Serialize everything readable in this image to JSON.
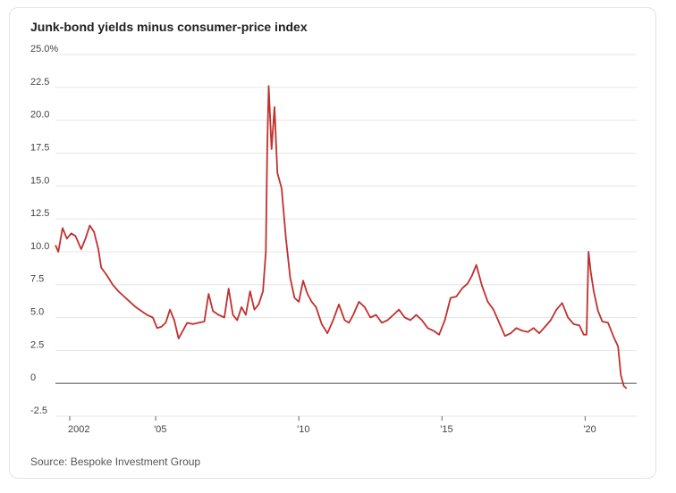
{
  "chart_data": {
    "type": "line",
    "title": "Junk-bond yields minus consumer-price index",
    "source": "Source: Bespoke Investment Group",
    "xlabel": "",
    "ylabel": "",
    "ylim": [
      -2.5,
      25
    ],
    "xlim": [
      2001.5,
      2021.8
    ],
    "grid": true,
    "y_ticks": [
      {
        "value": 25,
        "label": "25.0%"
      },
      {
        "value": 22.5,
        "label": "22.5"
      },
      {
        "value": 20,
        "label": "20.0"
      },
      {
        "value": 17.5,
        "label": "17.5"
      },
      {
        "value": 15,
        "label": "15.0"
      },
      {
        "value": 12.5,
        "label": "12.5"
      },
      {
        "value": 10,
        "label": "10.0"
      },
      {
        "value": 7.5,
        "label": "7.5"
      },
      {
        "value": 5,
        "label": "5.0"
      },
      {
        "value": 2.5,
        "label": "2.5"
      },
      {
        "value": 0,
        "label": "0"
      },
      {
        "value": -2.5,
        "label": "-2.5"
      }
    ],
    "x_ticks": [
      {
        "value": 2002,
        "label": "2002"
      },
      {
        "value": 2005,
        "label": "'05"
      },
      {
        "value": 2010,
        "label": "'10"
      },
      {
        "value": 2015,
        "label": "'15"
      },
      {
        "value": 2020,
        "label": "'20"
      }
    ],
    "series": [
      {
        "color": "#c0302e",
        "x": [
          2001.5,
          2001.6,
          2001.75,
          2001.9,
          2002.05,
          2002.2,
          2002.4,
          2002.55,
          2002.7,
          2002.85,
          2003.0,
          2003.1,
          2003.3,
          2003.5,
          2003.7,
          2003.9,
          2004.1,
          2004.3,
          2004.5,
          2004.7,
          2004.9,
          2005.05,
          2005.2,
          2005.35,
          2005.5,
          2005.65,
          2005.8,
          2005.95,
          2006.1,
          2006.3,
          2006.5,
          2006.7,
          2006.85,
          2007.0,
          2007.2,
          2007.4,
          2007.55,
          2007.7,
          2007.85,
          2008.0,
          2008.15,
          2008.3,
          2008.45,
          2008.6,
          2008.75,
          2008.85,
          2008.9,
          2008.95,
          2009.05,
          2009.15,
          2009.25,
          2009.4,
          2009.55,
          2009.7,
          2009.85,
          2010.0,
          2010.15,
          2010.3,
          2010.45,
          2010.6,
          2010.8,
          2011.0,
          2011.2,
          2011.4,
          2011.6,
          2011.75,
          2011.9,
          2012.1,
          2012.3,
          2012.5,
          2012.7,
          2012.9,
          2013.1,
          2013.3,
          2013.5,
          2013.7,
          2013.9,
          2014.1,
          2014.3,
          2014.5,
          2014.7,
          2014.9,
          2015.1,
          2015.3,
          2015.5,
          2015.7,
          2015.9,
          2016.05,
          2016.2,
          2016.4,
          2016.6,
          2016.8,
          2017.0,
          2017.2,
          2017.4,
          2017.6,
          2017.8,
          2018.0,
          2018.2,
          2018.4,
          2018.6,
          2018.8,
          2019.0,
          2019.2,
          2019.4,
          2019.6,
          2019.8,
          2019.95,
          2020.05,
          2020.12,
          2020.2,
          2020.3,
          2020.45,
          2020.6,
          2020.8,
          2021.0,
          2021.15,
          2021.25,
          2021.35,
          2021.45
        ],
        "y": [
          10.5,
          10.0,
          11.8,
          11.0,
          11.4,
          11.2,
          10.2,
          11.0,
          12.0,
          11.5,
          10.2,
          8.8,
          8.2,
          7.5,
          7.0,
          6.6,
          6.2,
          5.8,
          5.5,
          5.2,
          5.0,
          4.2,
          4.3,
          4.6,
          5.6,
          4.8,
          3.4,
          4.0,
          4.6,
          4.5,
          4.6,
          4.7,
          6.8,
          5.5,
          5.2,
          5.0,
          7.2,
          5.2,
          4.8,
          5.8,
          5.2,
          7.0,
          5.6,
          6.0,
          7.0,
          10.0,
          18.0,
          22.6,
          17.8,
          21.0,
          16.0,
          14.8,
          11.0,
          8.0,
          6.5,
          6.2,
          7.8,
          6.8,
          6.2,
          5.8,
          4.5,
          3.8,
          4.8,
          6.0,
          4.8,
          4.6,
          5.2,
          6.2,
          5.8,
          5.0,
          5.2,
          4.6,
          4.8,
          5.2,
          5.6,
          5.0,
          4.8,
          5.2,
          4.8,
          4.2,
          4.0,
          3.7,
          4.8,
          6.5,
          6.6,
          7.2,
          7.6,
          8.2,
          9.0,
          7.4,
          6.2,
          5.6,
          4.6,
          3.6,
          3.8,
          4.2,
          4.0,
          3.9,
          4.2,
          3.8,
          4.3,
          4.8,
          5.6,
          6.1,
          5.0,
          4.5,
          4.4,
          3.7,
          3.7,
          10.0,
          8.4,
          7.0,
          5.5,
          4.7,
          4.6,
          3.5,
          2.8,
          0.6,
          -0.2,
          -0.4
        ]
      }
    ]
  }
}
